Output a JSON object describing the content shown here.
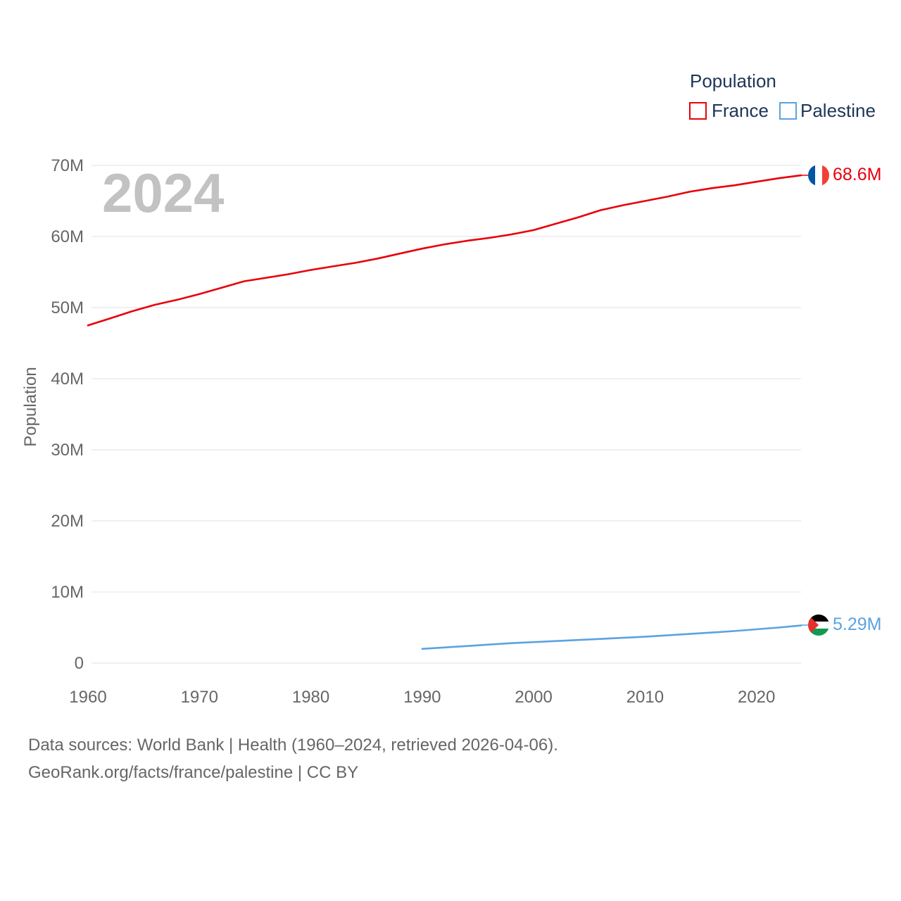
{
  "chart_data": {
    "type": "line",
    "title": "",
    "year_label": "2024",
    "xlabel": "",
    "ylabel": "Population",
    "xlim": [
      1960,
      2024
    ],
    "ylim": [
      0,
      70000000
    ],
    "x_ticks": [
      1960,
      1970,
      1980,
      1990,
      2000,
      2010,
      2020
    ],
    "y_ticks": [
      {
        "value": 0,
        "label": "0"
      },
      {
        "value": 10000000,
        "label": "10M"
      },
      {
        "value": 20000000,
        "label": "20M"
      },
      {
        "value": 30000000,
        "label": "30M"
      },
      {
        "value": 40000000,
        "label": "40M"
      },
      {
        "value": 50000000,
        "label": "50M"
      },
      {
        "value": 60000000,
        "label": "60M"
      },
      {
        "value": 70000000,
        "label": "70M"
      }
    ],
    "grid": true,
    "legend": {
      "title": "Population",
      "position": "top-right"
    },
    "series": [
      {
        "name": "France",
        "color": "#e8000b",
        "end_label": "68.6M",
        "flag": "france-flag",
        "x": [
          1960,
          1962,
          1964,
          1966,
          1968,
          1970,
          1972,
          1974,
          1976,
          1978,
          1980,
          1982,
          1984,
          1986,
          1988,
          1990,
          1992,
          1994,
          1996,
          1998,
          2000,
          2002,
          2004,
          2006,
          2008,
          2010,
          2012,
          2014,
          2016,
          2018,
          2020,
          2022,
          2024
        ],
        "values": [
          47500000,
          48500000,
          49500000,
          50400000,
          51100000,
          51900000,
          52800000,
          53700000,
          54200000,
          54700000,
          55300000,
          55800000,
          56300000,
          56900000,
          57600000,
          58300000,
          58900000,
          59400000,
          59800000,
          60300000,
          60900000,
          61800000,
          62700000,
          63700000,
          64400000,
          65000000,
          65600000,
          66300000,
          66800000,
          67200000,
          67700000,
          68200000,
          68600000
        ]
      },
      {
        "name": "Palestine",
        "color": "#5ba3e0",
        "end_label": "5.29M",
        "flag": "palestine-flag",
        "x": [
          1990,
          1992,
          1994,
          1996,
          1998,
          2000,
          2002,
          2004,
          2006,
          2008,
          2010,
          2012,
          2014,
          2016,
          2018,
          2020,
          2022,
          2024
        ],
        "values": [
          2000000,
          2200000,
          2400000,
          2600000,
          2800000,
          2950000,
          3100000,
          3250000,
          3400000,
          3550000,
          3700000,
          3900000,
          4100000,
          4300000,
          4500000,
          4750000,
          5000000,
          5290000
        ]
      }
    ]
  },
  "footer": {
    "line1": "Data sources: World Bank | Health (1960–2024, retrieved 2026-04-06).",
    "line2": "GeoRank.org/facts/france/palestine | CC BY"
  }
}
